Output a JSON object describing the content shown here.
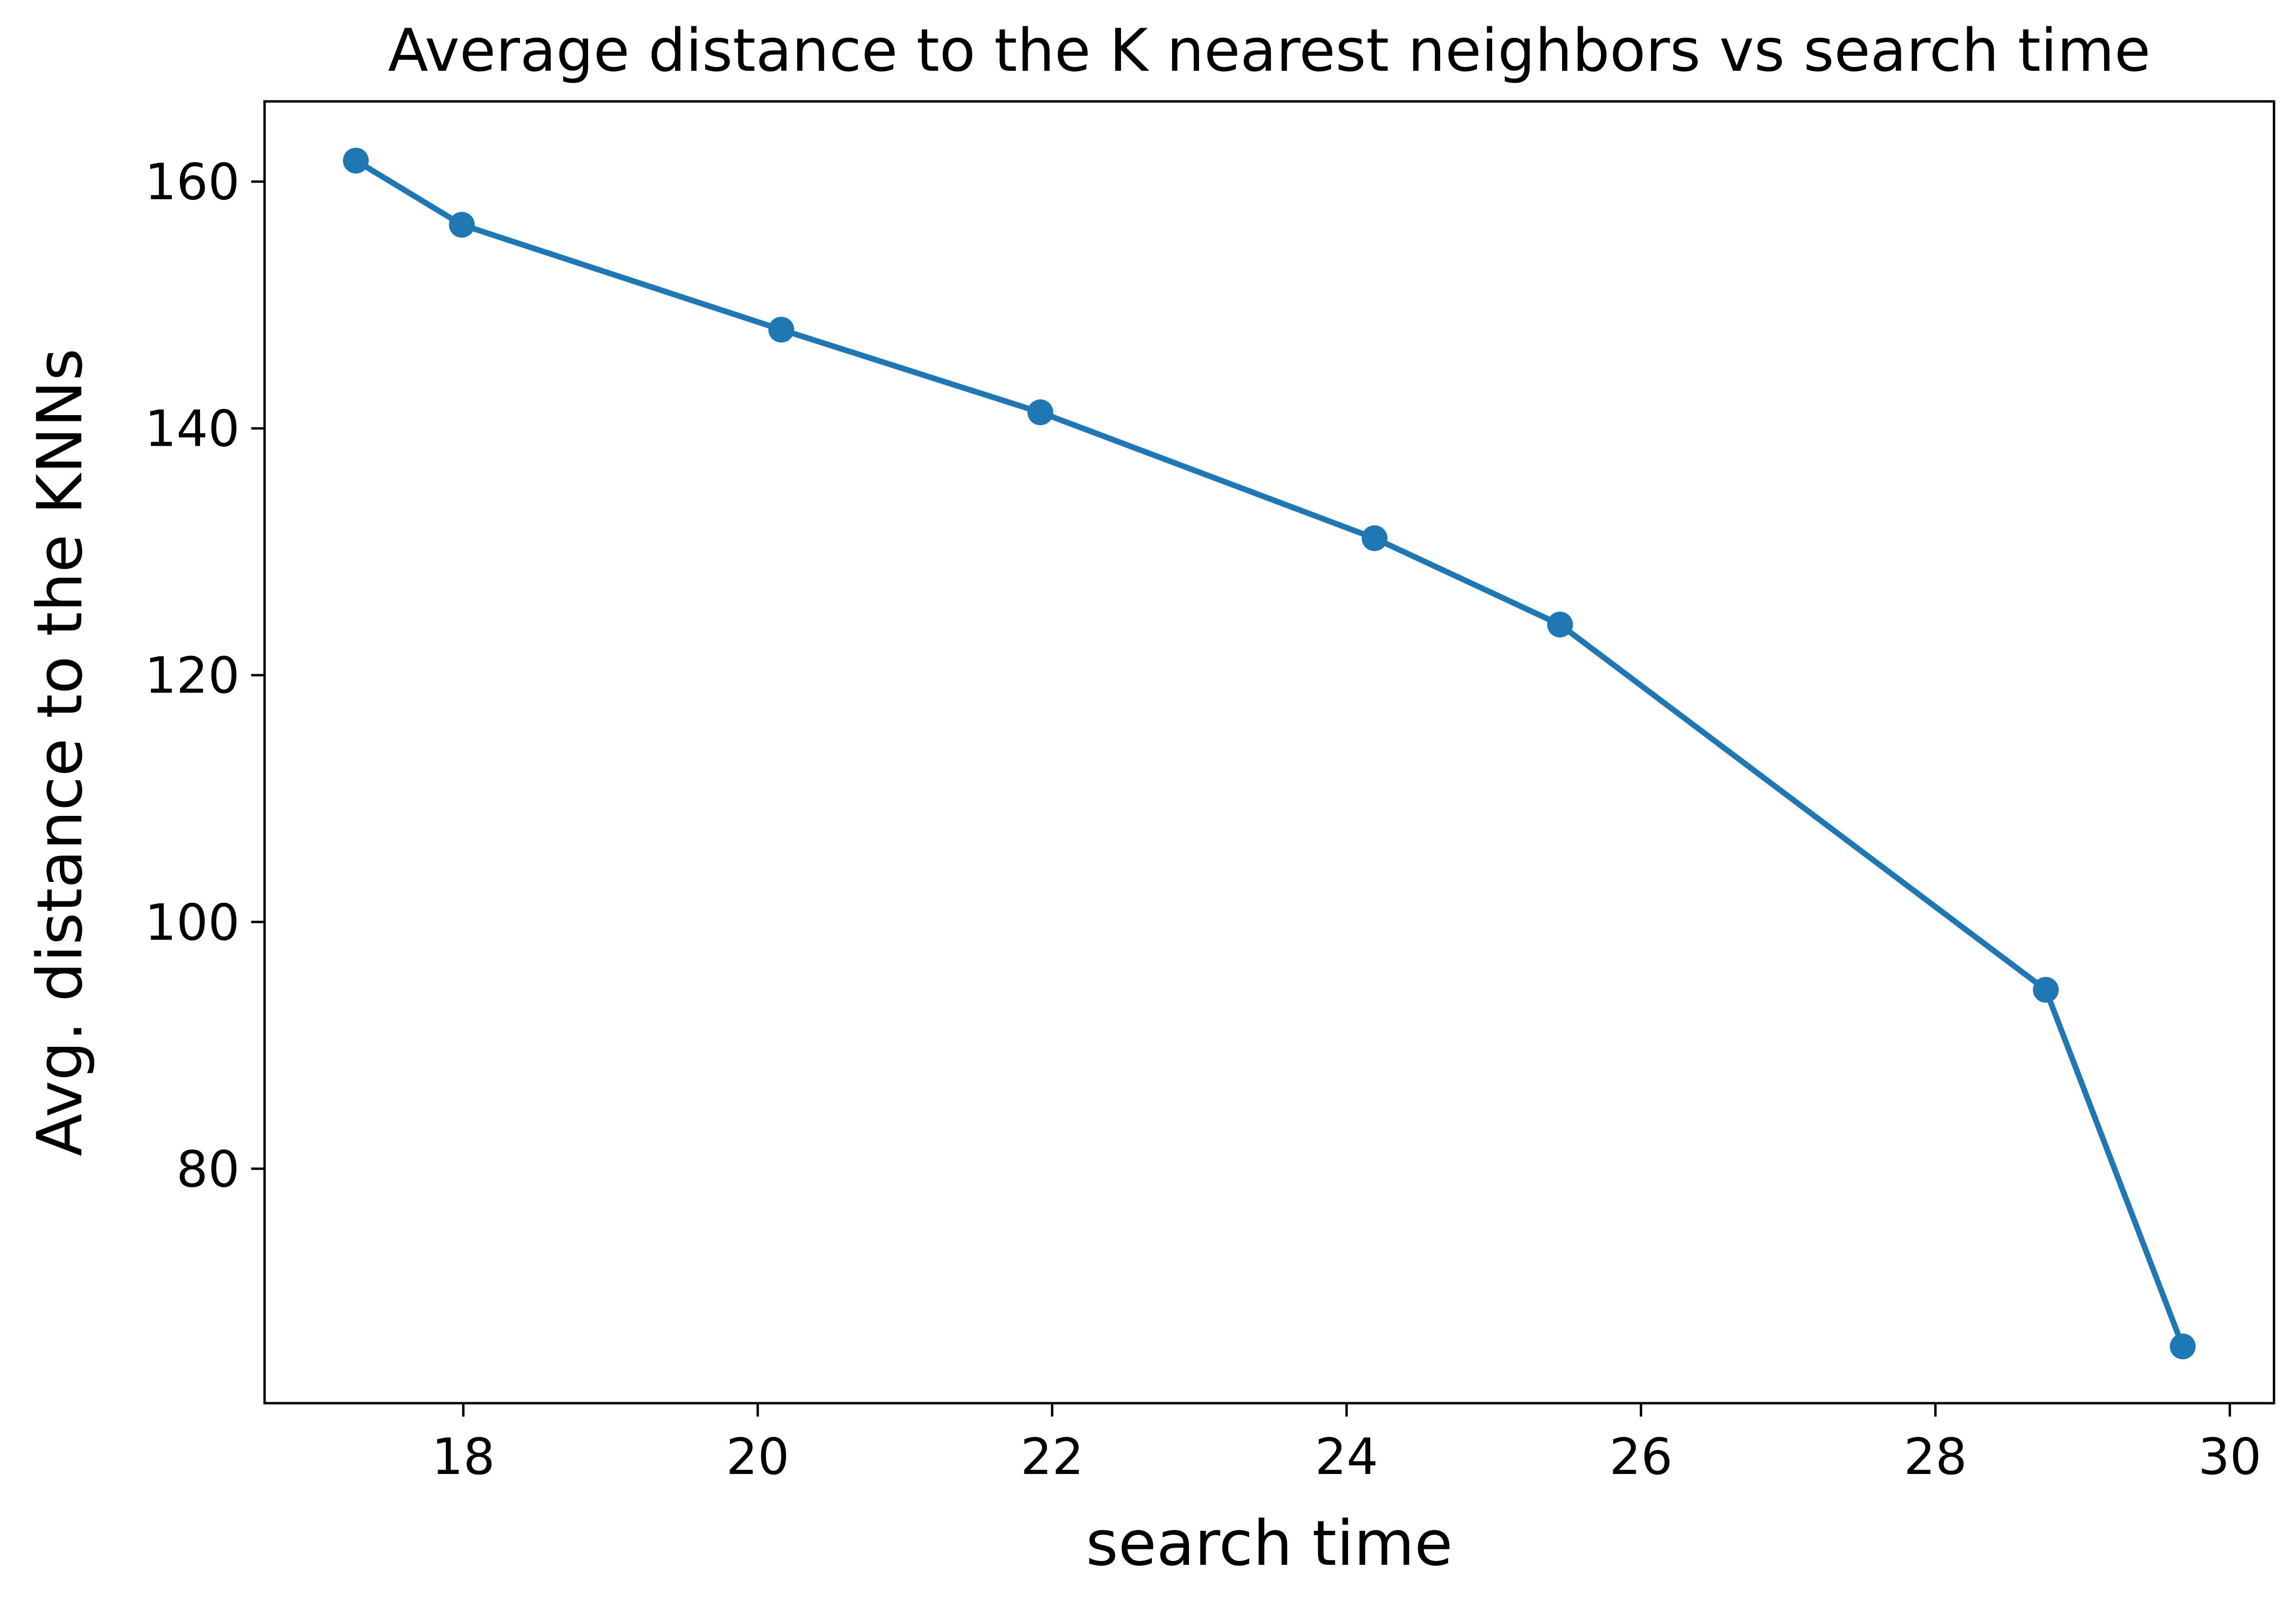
{
  "chart_data": {
    "type": "line",
    "title": "Average distance to the K nearest neighbors vs search time",
    "xlabel": "search time",
    "ylabel": "Avg. distance to the KNNs",
    "xlim": [
      16.65,
      30.3
    ],
    "ylim": [
      61.0,
      166.5
    ],
    "xticks": [
      18,
      20,
      22,
      24,
      26,
      28,
      30
    ],
    "yticks": [
      80,
      100,
      120,
      140,
      160
    ],
    "grid": false,
    "legend": "none",
    "series": [
      {
        "color": "#1f77b4",
        "marker": "circle",
        "points": [
          {
            "x": 17.27,
            "y": 161.7
          },
          {
            "x": 17.99,
            "y": 156.5
          },
          {
            "x": 20.16,
            "y": 148.0
          },
          {
            "x": 21.92,
            "y": 141.3
          },
          {
            "x": 24.19,
            "y": 131.1
          },
          {
            "x": 25.45,
            "y": 124.1
          },
          {
            "x": 28.75,
            "y": 94.5
          },
          {
            "x": 29.68,
            "y": 65.6
          }
        ]
      }
    ]
  }
}
